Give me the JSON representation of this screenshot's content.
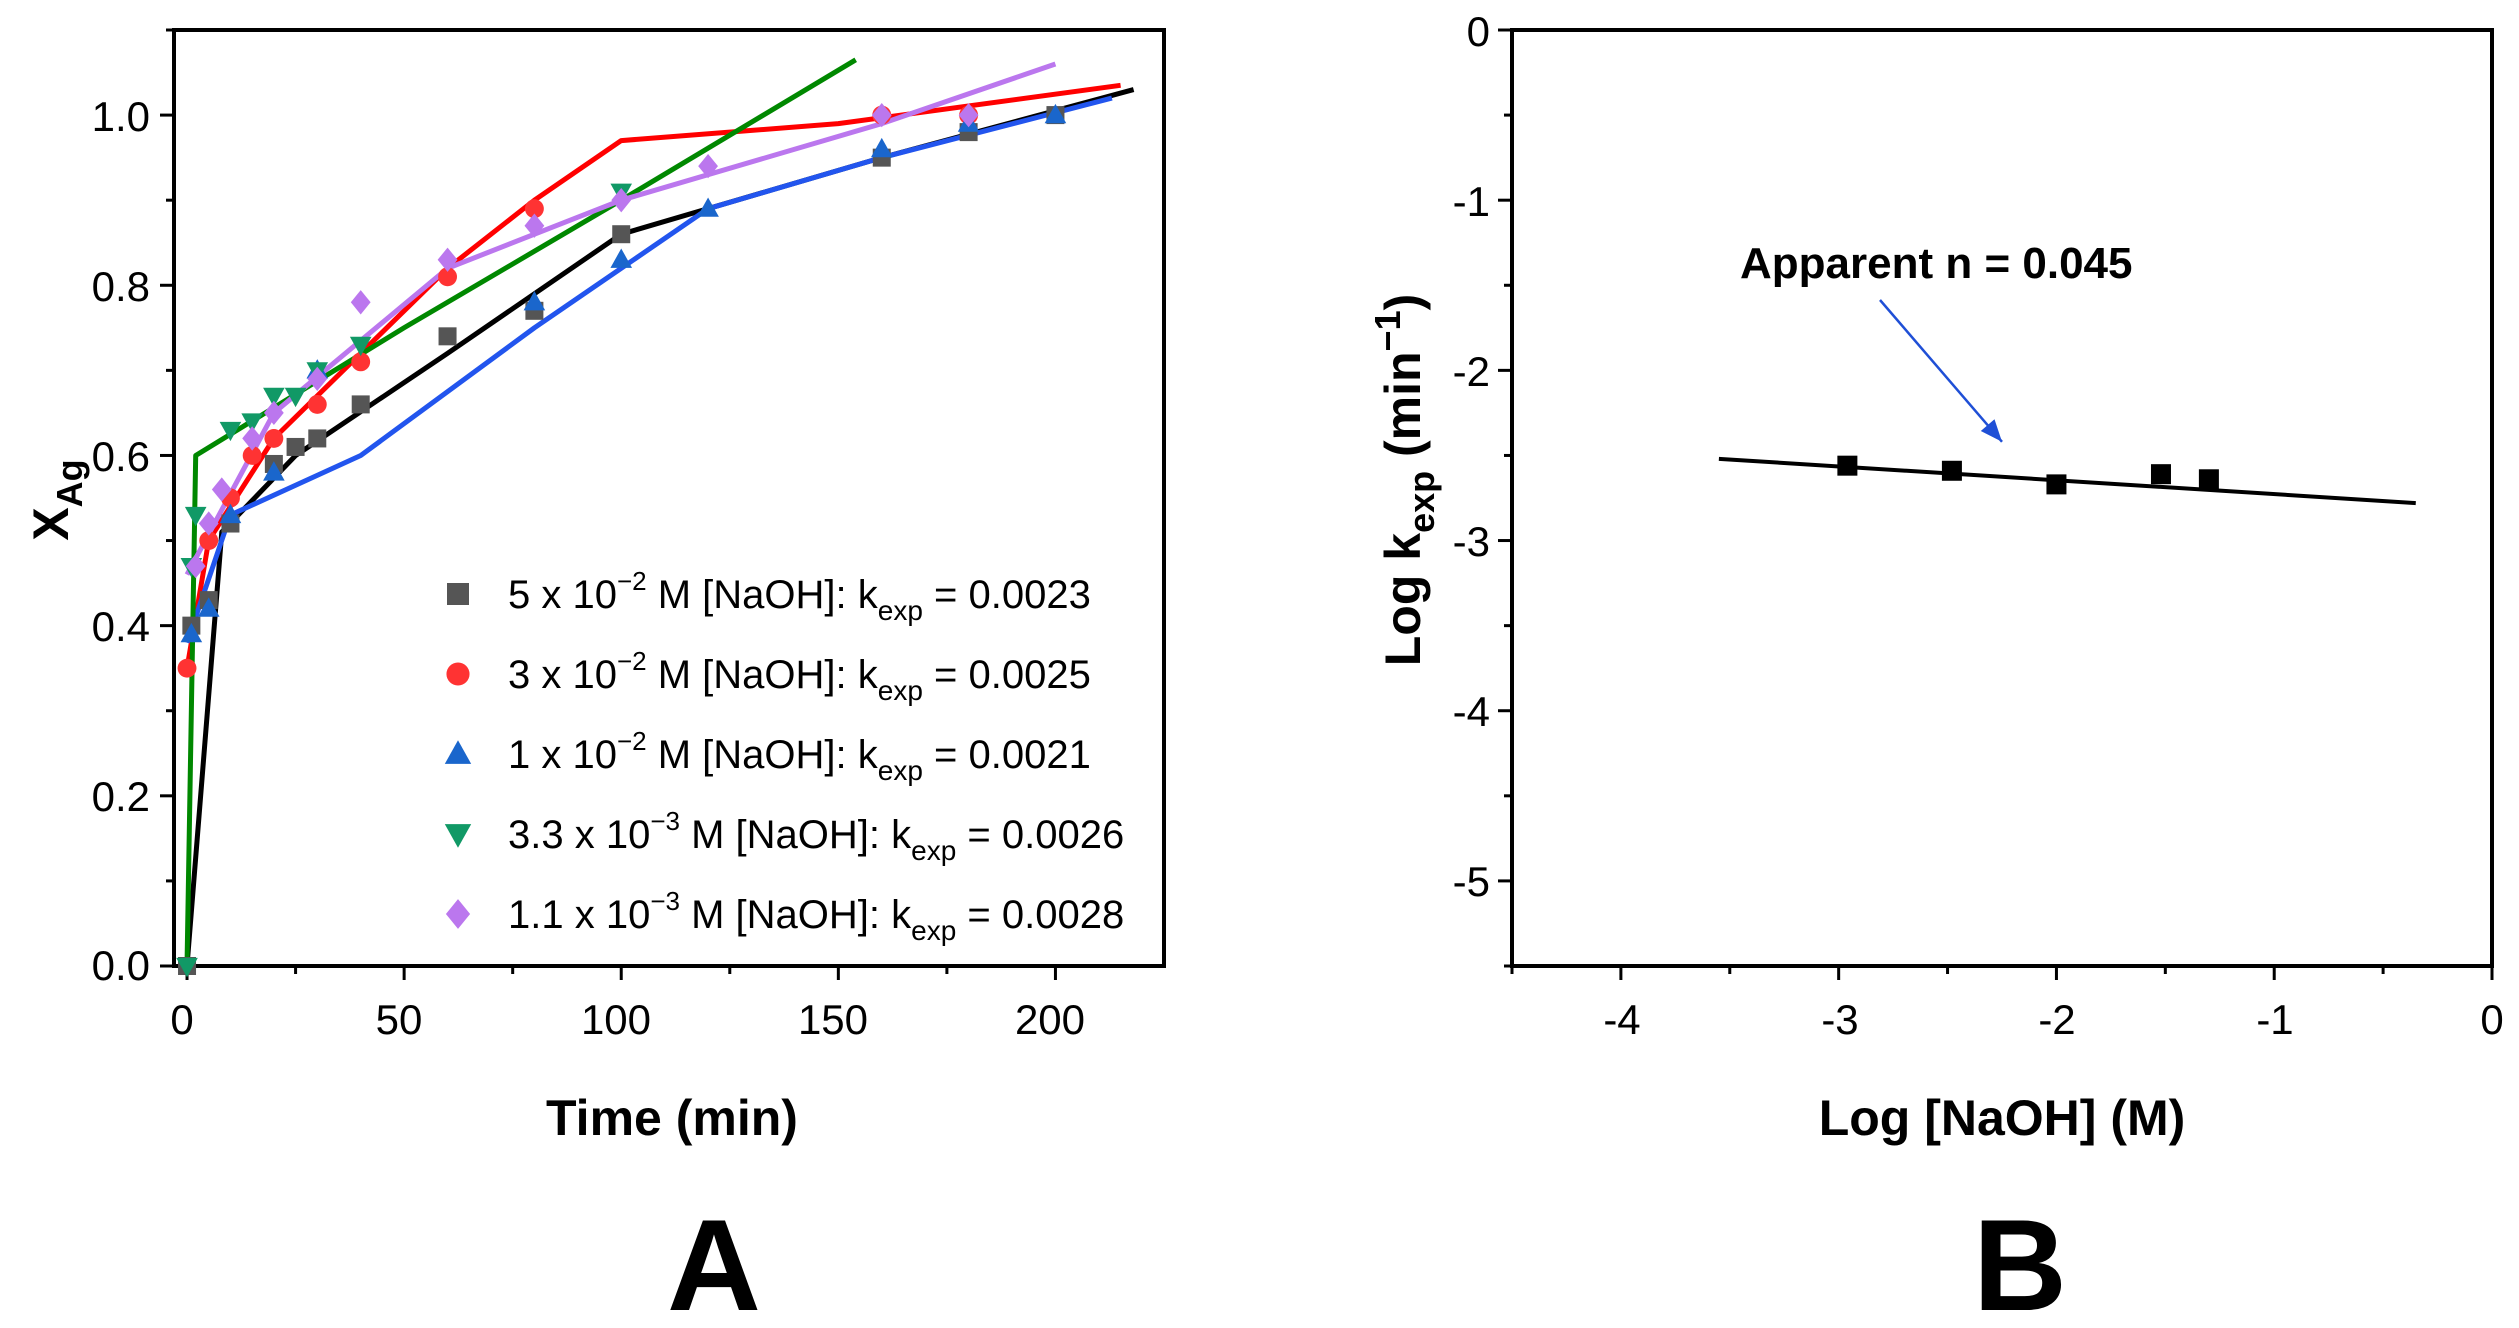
{
  "chart_data": [
    {
      "panel_label": "A",
      "type": "line",
      "xlabel": "Time (min)",
      "ylabel": {
        "main": "X",
        "sub": "Ag"
      },
      "xlim": [
        -3,
        225
      ],
      "ylim": [
        0.0,
        1.1
      ],
      "xticks": [
        0,
        50,
        100,
        150,
        200
      ],
      "yticks": [
        0.0,
        0.2,
        0.4,
        0.6,
        0.8,
        1.0
      ],
      "xtick_labels": [
        "0",
        "50",
        "100",
        "150",
        "200"
      ],
      "ytick_labels": [
        "0.0",
        "0.2",
        "0.4",
        "0.6",
        "0.8",
        "1.0"
      ],
      "legend_position": "bottom-right",
      "series": [
        {
          "name": "5 x 10−2 M [NaOH]: kexp = 0.0023",
          "legend": {
            "coef": "5 x 10",
            "exp": "−2",
            "mid": " M [NaOH]: k",
            "sub": "exp",
            "end": " = 0.0023"
          },
          "color": "#555555",
          "line_color": "#000000",
          "marker": "square",
          "points": [
            [
              0,
              0.0
            ],
            [
              1,
              0.4
            ],
            [
              5,
              0.43
            ],
            [
              10,
              0.52
            ],
            [
              20,
              0.59
            ],
            [
              25,
              0.61
            ],
            [
              30,
              0.62
            ],
            [
              40,
              0.66
            ],
            [
              60,
              0.74
            ],
            [
              80,
              0.77
            ],
            [
              100,
              0.86
            ],
            [
              160,
              0.95
            ],
            [
              180,
              0.98
            ],
            [
              200,
              1.0
            ]
          ],
          "fit": [
            [
              0,
              0.0
            ],
            [
              8,
              0.51
            ],
            [
              25,
              0.6
            ],
            [
              60,
              0.72
            ],
            [
              100,
              0.86
            ],
            [
              160,
              0.95
            ],
            [
              218,
              1.03
            ]
          ]
        },
        {
          "name": "3 x 10−2 M [NaOH]: kexp = 0.0025",
          "legend": {
            "coef": "3 x 10",
            "exp": "−2",
            "mid": " M [NaOH]: k",
            "sub": "exp",
            "end": " = 0.0025"
          },
          "color": "#ff3333",
          "line_color": "#ff0000",
          "marker": "circle",
          "points": [
            [
              0,
              0.35
            ],
            [
              5,
              0.5
            ],
            [
              10,
              0.55
            ],
            [
              15,
              0.6
            ],
            [
              20,
              0.62
            ],
            [
              30,
              0.66
            ],
            [
              40,
              0.71
            ],
            [
              60,
              0.81
            ],
            [
              80,
              0.89
            ],
            [
              160,
              1.0
            ],
            [
              180,
              1.0
            ]
          ],
          "fit": [
            [
              0,
              0.35
            ],
            [
              5,
              0.5
            ],
            [
              20,
              0.62
            ],
            [
              40,
              0.72
            ],
            [
              60,
              0.82
            ],
            [
              80,
              0.9
            ],
            [
              100,
              0.97
            ],
            [
              150,
              0.99
            ],
            [
              215,
              1.035
            ]
          ]
        },
        {
          "name": "1 x 10−2 M [NaOH]: kexp = 0.0021",
          "legend": {
            "coef": "1 x 10",
            "exp": "−2",
            "mid": " M [NaOH]: k",
            "sub": "exp",
            "end": " = 0.0021"
          },
          "color": "#1a66cc",
          "line_color": "#2255ee",
          "marker": "triangle-up",
          "points": [
            [
              1,
              0.39
            ],
            [
              5,
              0.42
            ],
            [
              10,
              0.53
            ],
            [
              20,
              0.58
            ],
            [
              30,
              0.7
            ],
            [
              80,
              0.78
            ],
            [
              100,
              0.83
            ],
            [
              120,
              0.89
            ],
            [
              160,
              0.96
            ],
            [
              180,
              0.99
            ],
            [
              200,
              1.0
            ]
          ],
          "fit": [
            [
              0,
              0.38
            ],
            [
              10,
              0.53
            ],
            [
              40,
              0.6
            ],
            [
              80,
              0.75
            ],
            [
              100,
              0.82
            ],
            [
              120,
              0.89
            ],
            [
              160,
              0.95
            ],
            [
              213,
              1.02
            ]
          ]
        },
        {
          "name": "3.3 x 10−3 M [NaOH]: kexp = 0.0026",
          "legend": {
            "coef": "3.3 x 10",
            "exp": "−3",
            "mid": " M [NaOH]: k",
            "sub": "exp",
            "end": " = 0.0026"
          },
          "color": "#119966",
          "line_color": "#008800",
          "marker": "triangle-down",
          "points": [
            [
              0,
              0.0
            ],
            [
              1,
              0.47
            ],
            [
              2,
              0.53
            ],
            [
              10,
              0.63
            ],
            [
              15,
              0.64
            ],
            [
              20,
              0.67
            ],
            [
              25,
              0.67
            ],
            [
              30,
              0.7
            ],
            [
              40,
              0.73
            ],
            [
              100,
              0.91
            ]
          ],
          "fit": [
            [
              0,
              0.0
            ],
            [
              2,
              0.6
            ],
            [
              50,
              0.75
            ],
            [
              100,
              0.9
            ],
            [
              154,
              1.065
            ]
          ]
        },
        {
          "name": "1.1 x 10−3 M [NaOH]: kexp = 0.0028",
          "legend": {
            "coef": "1.1 x 10",
            "exp": "−3",
            "mid": " M [NaOH]: k",
            "sub": "exp",
            "end": " = 0.0028"
          },
          "color": "#bb77ee",
          "line_color": "#bb77ee",
          "marker": "diamond",
          "points": [
            [
              2,
              0.47
            ],
            [
              5,
              0.52
            ],
            [
              8,
              0.56
            ],
            [
              15,
              0.62
            ],
            [
              20,
              0.65
            ],
            [
              30,
              0.69
            ],
            [
              40,
              0.78
            ],
            [
              60,
              0.83
            ],
            [
              80,
              0.87
            ],
            [
              100,
              0.9
            ],
            [
              120,
              0.94
            ],
            [
              160,
              1.0
            ],
            [
              180,
              1.0
            ]
          ],
          "fit": [
            [
              0,
              0.46
            ],
            [
              20,
              0.65
            ],
            [
              60,
              0.82
            ],
            [
              100,
              0.9
            ],
            [
              160,
              0.99
            ],
            [
              200,
              1.06
            ]
          ]
        }
      ]
    },
    {
      "panel_label": "B",
      "type": "scatter",
      "xlabel": "Log [NaOH] (M)",
      "ylabel": {
        "main": "Log k",
        "sub": "exp",
        "unit": " (min",
        "sup": "−1",
        "close": ")"
      },
      "xlim": [
        -4.5,
        0
      ],
      "ylim": [
        -5.5,
        0
      ],
      "xticks": [
        -4,
        -3,
        -2,
        -1,
        0
      ],
      "yticks": [
        -5,
        -4,
        -3,
        -2,
        -1,
        0
      ],
      "xtick_labels": [
        "-4",
        "-3",
        "-2",
        "-1",
        "0"
      ],
      "ytick_labels": [
        "-5",
        "-4",
        "-3",
        "-2",
        "-1",
        "0"
      ],
      "points": [
        [
          -2.96,
          -2.56
        ],
        [
          -2.48,
          -2.59
        ],
        [
          -2.0,
          -2.67
        ],
        [
          -1.52,
          -2.61
        ],
        [
          -1.3,
          -2.64
        ]
      ],
      "fit": {
        "x": [
          -3.55,
          -0.35
        ],
        "y": [
          -2.52,
          -2.78
        ]
      },
      "annotation": {
        "text": "Apparent n = 0.045",
        "arrow_to": [
          -2.25,
          -2.42
        ]
      }
    }
  ]
}
